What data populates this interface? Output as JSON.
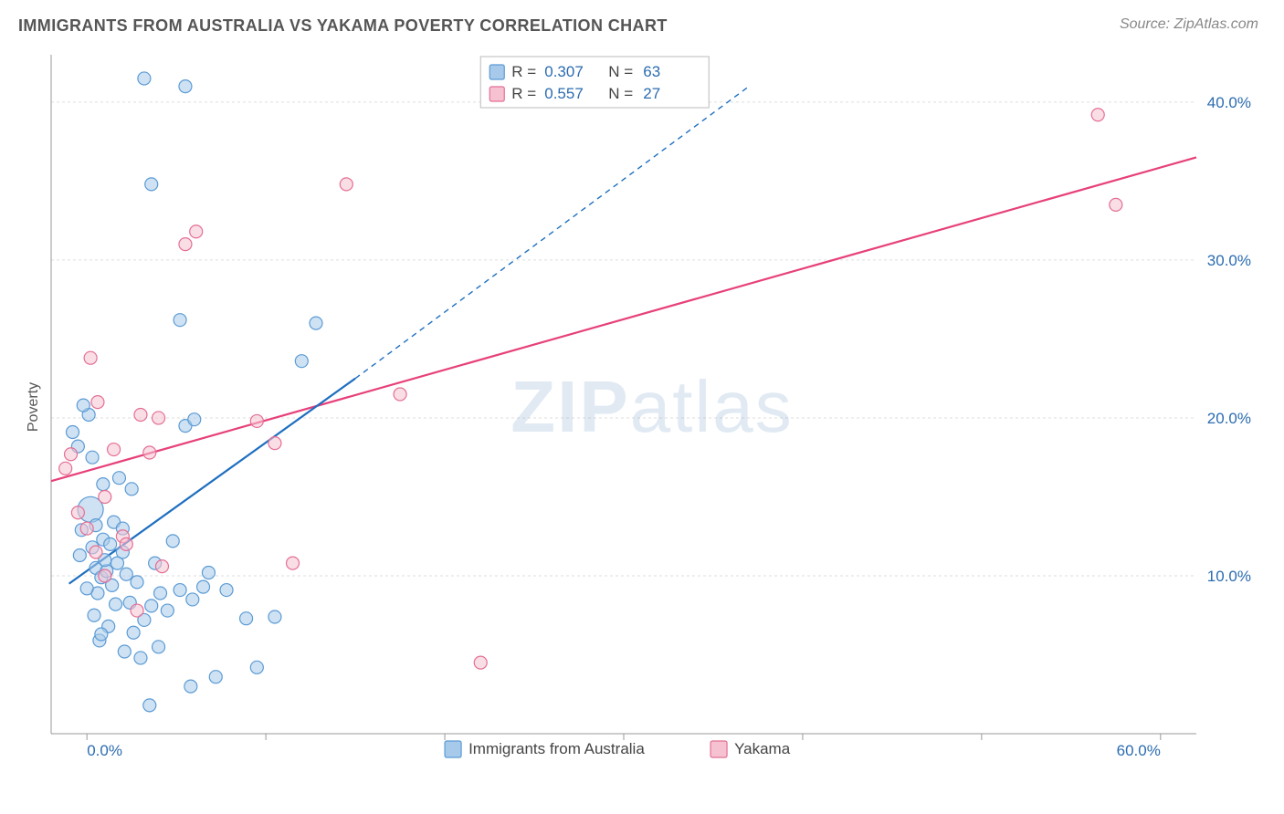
{
  "title": "IMMIGRANTS FROM AUSTRALIA VS YAKAMA POVERTY CORRELATION CHART",
  "source_label": "Source: ZipAtlas.com",
  "ylabel": "Poverty",
  "watermark": {
    "bold": "ZIP",
    "rest": "atlas"
  },
  "chart": {
    "type": "scatter",
    "xlim": [
      -2,
      62
    ],
    "ylim": [
      0,
      43
    ],
    "x_ticks": [
      0,
      10,
      20,
      30,
      40,
      50,
      60
    ],
    "x_tick_labels_shown": {
      "0": "0.0%",
      "60": "60.0%"
    },
    "y_ticks": [
      10,
      20,
      30,
      40
    ],
    "y_tick_labels": {
      "10": "10.0%",
      "20": "20.0%",
      "30": "30.0%",
      "40": "40.0%"
    },
    "background_color": "#ffffff",
    "grid_color": "#dddddd",
    "grid_dash": "3,3",
    "axis_color": "#999999",
    "tick_label_color": "#2b6cb0",
    "marker_stroke_width": 1.2,
    "marker_opacity": 0.55,
    "trend_line_width": 2.2,
    "trend_dash_width": 1.4,
    "trend_dash_pattern": "6,5"
  },
  "series": [
    {
      "name": "Immigrants from Australia",
      "key": "australia",
      "fill": "#a8caea",
      "stroke": "#5b9bd5",
      "trend_color": "#1f6fc0",
      "trend_solid": {
        "x1": -1,
        "y1": 9.5,
        "x2": 15,
        "y2": 22.5
      },
      "trend_dashed": {
        "x1": 15,
        "y1": 22.5,
        "x2": 37,
        "y2": 41
      },
      "r_label": "R = ",
      "r_value": "0.307",
      "n_label": "N = ",
      "n_value": "63",
      "points": [
        {
          "x": 0.2,
          "y": 14.2,
          "r": 14
        },
        {
          "x": -0.3,
          "y": 12.9,
          "r": 7
        },
        {
          "x": 0.5,
          "y": 10.5,
          "r": 7
        },
        {
          "x": 0.8,
          "y": 9.9,
          "r": 7
        },
        {
          "x": 0.3,
          "y": 11.8,
          "r": 7
        },
        {
          "x": 1.1,
          "y": 10.3,
          "r": 7
        },
        {
          "x": 0.6,
          "y": 8.9,
          "r": 7
        },
        {
          "x": 0.9,
          "y": 12.3,
          "r": 7
        },
        {
          "x": 1.4,
          "y": 9.4,
          "r": 7
        },
        {
          "x": 1.7,
          "y": 10.8,
          "r": 7
        },
        {
          "x": 2.0,
          "y": 11.5,
          "r": 7
        },
        {
          "x": 0.4,
          "y": 7.5,
          "r": 7
        },
        {
          "x": 1.2,
          "y": 6.8,
          "r": 7
        },
        {
          "x": 2.4,
          "y": 8.3,
          "r": 7
        },
        {
          "x": 2.8,
          "y": 9.6,
          "r": 7
        },
        {
          "x": 3.2,
          "y": 7.2,
          "r": 7
        },
        {
          "x": 3.6,
          "y": 8.1,
          "r": 7
        },
        {
          "x": 0.7,
          "y": 5.9,
          "r": 7
        },
        {
          "x": 2.1,
          "y": 5.2,
          "r": 7
        },
        {
          "x": 4.1,
          "y": 8.9,
          "r": 7
        },
        {
          "x": 4.5,
          "y": 7.8,
          "r": 7
        },
        {
          "x": 5.2,
          "y": 9.1,
          "r": 7
        },
        {
          "x": 5.9,
          "y": 8.5,
          "r": 7
        },
        {
          "x": 6.5,
          "y": 9.3,
          "r": 7
        },
        {
          "x": 3.0,
          "y": 4.8,
          "r": 7
        },
        {
          "x": 4.0,
          "y": 5.5,
          "r": 7
        },
        {
          "x": 1.5,
          "y": 13.4,
          "r": 7
        },
        {
          "x": 0.9,
          "y": 15.8,
          "r": 7
        },
        {
          "x": 1.8,
          "y": 16.2,
          "r": 7
        },
        {
          "x": 2.5,
          "y": 15.5,
          "r": 7
        },
        {
          "x": 0.3,
          "y": 17.5,
          "r": 7
        },
        {
          "x": -0.5,
          "y": 18.2,
          "r": 7
        },
        {
          "x": -0.8,
          "y": 19.1,
          "r": 7
        },
        {
          "x": 0.1,
          "y": 20.2,
          "r": 7
        },
        {
          "x": 7.8,
          "y": 9.1,
          "r": 7
        },
        {
          "x": 8.9,
          "y": 7.3,
          "r": 7
        },
        {
          "x": 10.5,
          "y": 7.4,
          "r": 7
        },
        {
          "x": 5.5,
          "y": 19.5,
          "r": 7
        },
        {
          "x": 6.0,
          "y": 19.9,
          "r": 7
        },
        {
          "x": 5.8,
          "y": 3.0,
          "r": 7
        },
        {
          "x": 3.5,
          "y": 1.8,
          "r": 7
        },
        {
          "x": 7.2,
          "y": 3.6,
          "r": 7
        },
        {
          "x": 9.5,
          "y": 4.2,
          "r": 7
        },
        {
          "x": 3.2,
          "y": 41.5,
          "r": 7
        },
        {
          "x": 5.5,
          "y": 41.0,
          "r": 7
        },
        {
          "x": 3.6,
          "y": 34.8,
          "r": 7
        },
        {
          "x": 5.2,
          "y": 26.2,
          "r": 7
        },
        {
          "x": 12.0,
          "y": 23.6,
          "r": 7
        },
        {
          "x": 12.8,
          "y": 26.0,
          "r": 7
        },
        {
          "x": -0.2,
          "y": 20.8,
          "r": 7
        },
        {
          "x": 1.0,
          "y": 11.0,
          "r": 7
        },
        {
          "x": 1.3,
          "y": 12.0,
          "r": 7
        },
        {
          "x": 2.2,
          "y": 10.1,
          "r": 7
        },
        {
          "x": 0.0,
          "y": 9.2,
          "r": 7
        },
        {
          "x": 0.5,
          "y": 13.2,
          "r": 7
        },
        {
          "x": -0.4,
          "y": 11.3,
          "r": 7
        },
        {
          "x": 3.8,
          "y": 10.8,
          "r": 7
        },
        {
          "x": 4.8,
          "y": 12.2,
          "r": 7
        },
        {
          "x": 1.6,
          "y": 8.2,
          "r": 7
        },
        {
          "x": 2.6,
          "y": 6.4,
          "r": 7
        },
        {
          "x": 0.8,
          "y": 6.3,
          "r": 7
        },
        {
          "x": 6.8,
          "y": 10.2,
          "r": 7
        },
        {
          "x": 2.0,
          "y": 13.0,
          "r": 7
        }
      ]
    },
    {
      "name": "Yakama",
      "key": "yakama",
      "fill": "#f6c2d1",
      "stroke": "#e46f94",
      "trend_color": "#e7407a",
      "trend_solid": {
        "x1": -2,
        "y1": 16.0,
        "x2": 62,
        "y2": 36.5
      },
      "r_label": "R = ",
      "r_value": "0.557",
      "n_label": "N = ",
      "n_value": "27",
      "points": [
        {
          "x": -0.9,
          "y": 17.7,
          "r": 7
        },
        {
          "x": -1.2,
          "y": 16.8,
          "r": 7
        },
        {
          "x": 0.2,
          "y": 23.8,
          "r": 7
        },
        {
          "x": 0.6,
          "y": 21.0,
          "r": 7
        },
        {
          "x": 3.0,
          "y": 20.2,
          "r": 7
        },
        {
          "x": 4.0,
          "y": 20.0,
          "r": 7
        },
        {
          "x": 3.5,
          "y": 17.8,
          "r": 7
        },
        {
          "x": 4.2,
          "y": 10.6,
          "r": 7
        },
        {
          "x": 2.8,
          "y": 7.8,
          "r": 7
        },
        {
          "x": 6.1,
          "y": 31.8,
          "r": 7
        },
        {
          "x": 5.5,
          "y": 31.0,
          "r": 7
        },
        {
          "x": 14.5,
          "y": 34.8,
          "r": 7
        },
        {
          "x": 10.5,
          "y": 18.4,
          "r": 7
        },
        {
          "x": 11.5,
          "y": 10.8,
          "r": 7
        },
        {
          "x": 17.5,
          "y": 21.5,
          "r": 7
        },
        {
          "x": 22.0,
          "y": 4.5,
          "r": 7
        },
        {
          "x": 56.5,
          "y": 39.2,
          "r": 7
        },
        {
          "x": 57.5,
          "y": 33.5,
          "r": 7
        },
        {
          "x": 0.0,
          "y": 13.0,
          "r": 7
        },
        {
          "x": 0.5,
          "y": 11.5,
          "r": 7
        },
        {
          "x": 1.0,
          "y": 10.0,
          "r": 7
        },
        {
          "x": 1.0,
          "y": 15.0,
          "r": 7
        },
        {
          "x": -0.5,
          "y": 14.0,
          "r": 7
        },
        {
          "x": 2.0,
          "y": 12.5,
          "r": 7
        },
        {
          "x": 2.2,
          "y": 12.0,
          "r": 7
        },
        {
          "x": 9.5,
          "y": 19.8,
          "r": 7
        },
        {
          "x": 1.5,
          "y": 18.0,
          "r": 7
        }
      ]
    }
  ],
  "bottom_legend": {
    "items": [
      {
        "key": "australia",
        "label": "Immigrants from Australia",
        "fill": "#a8caea",
        "stroke": "#5b9bd5"
      },
      {
        "key": "yakama",
        "label": "Yakama",
        "fill": "#f6c2d1",
        "stroke": "#e46f94"
      }
    ]
  }
}
